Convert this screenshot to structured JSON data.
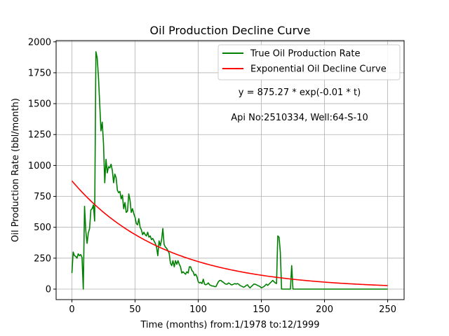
{
  "chart_data": {
    "type": "line",
    "title": "Oil Production Decline Curve",
    "xlabel": "Time (months) from:1/1978 to:12/1999",
    "ylabel": "Oil Production Rate (bbl/month)",
    "xlim": [
      -12.5,
      263
    ],
    "ylim": [
      -85,
      2010
    ],
    "xticks": [
      0,
      50,
      100,
      150,
      200,
      250
    ],
    "yticks": [
      0,
      250,
      500,
      750,
      1000,
      1250,
      1500,
      1750,
      2000
    ],
    "grid": true,
    "legend_position": "top-right",
    "annotations": [
      "y = 875.27 * exp(-0.01 * t)",
      "Api No:2510334, Well:64-S-10"
    ],
    "series": [
      {
        "name": "True Oil Production Rate",
        "color": "#008000",
        "points": [
          [
            0,
            130
          ],
          [
            1,
            300
          ],
          [
            2,
            270
          ],
          [
            3,
            265
          ],
          [
            4,
            250
          ],
          [
            5,
            285
          ],
          [
            6,
            270
          ],
          [
            7,
            280
          ],
          [
            8,
            255
          ],
          [
            9,
            0
          ],
          [
            10,
            670
          ],
          [
            11,
            470
          ],
          [
            12,
            370
          ],
          [
            13,
            455
          ],
          [
            14,
            490
          ],
          [
            15,
            640
          ],
          [
            16,
            650
          ],
          [
            17,
            680
          ],
          [
            18,
            550
          ],
          [
            19,
            1920
          ],
          [
            20,
            1870
          ],
          [
            21,
            1720
          ],
          [
            22,
            1500
          ],
          [
            23,
            1280
          ],
          [
            24,
            1350
          ],
          [
            25,
            1180
          ],
          [
            26,
            860
          ],
          [
            27,
            1050
          ],
          [
            28,
            940
          ],
          [
            29,
            990
          ],
          [
            30,
            980
          ],
          [
            31,
            1010
          ],
          [
            32,
            960
          ],
          [
            33,
            860
          ],
          [
            34,
            930
          ],
          [
            35,
            900
          ],
          [
            36,
            800
          ],
          [
            37,
            780
          ],
          [
            38,
            790
          ],
          [
            39,
            730
          ],
          [
            40,
            760
          ],
          [
            41,
            650
          ],
          [
            42,
            700
          ],
          [
            43,
            620
          ],
          [
            44,
            630
          ],
          [
            45,
            770
          ],
          [
            46,
            720
          ],
          [
            47,
            620
          ],
          [
            48,
            650
          ],
          [
            49,
            610
          ],
          [
            50,
            580
          ],
          [
            51,
            530
          ],
          [
            52,
            520
          ],
          [
            53,
            570
          ],
          [
            54,
            500
          ],
          [
            55,
            480
          ],
          [
            56,
            440
          ],
          [
            57,
            460
          ],
          [
            58,
            440
          ],
          [
            59,
            430
          ],
          [
            60,
            460
          ],
          [
            61,
            420
          ],
          [
            62,
            430
          ],
          [
            63,
            400
          ],
          [
            64,
            410
          ],
          [
            65,
            390
          ],
          [
            66,
            370
          ],
          [
            67,
            340
          ],
          [
            68,
            270
          ],
          [
            69,
            390
          ],
          [
            70,
            350
          ],
          [
            71,
            400
          ],
          [
            72,
            490
          ],
          [
            73,
            360
          ],
          [
            74,
            340
          ],
          [
            75,
            330
          ],
          [
            76,
            310
          ],
          [
            77,
            290
          ],
          [
            78,
            210
          ],
          [
            79,
            190
          ],
          [
            80,
            230
          ],
          [
            81,
            180
          ],
          [
            82,
            230
          ],
          [
            83,
            200
          ],
          [
            84,
            230
          ],
          [
            85,
            200
          ],
          [
            86,
            180
          ],
          [
            87,
            130
          ],
          [
            88,
            140
          ],
          [
            89,
            130
          ],
          [
            90,
            120
          ],
          [
            91,
            140
          ],
          [
            92,
            130
          ],
          [
            93,
            180
          ],
          [
            94,
            180
          ],
          [
            95,
            150
          ],
          [
            96,
            140
          ],
          [
            97,
            110
          ],
          [
            98,
            120
          ],
          [
            99,
            100
          ],
          [
            100,
            60
          ],
          [
            101,
            50
          ],
          [
            102,
            55
          ],
          [
            103,
            45
          ],
          [
            104,
            80
          ],
          [
            105,
            40
          ],
          [
            106,
            35
          ],
          [
            107,
            40
          ],
          [
            108,
            50
          ],
          [
            109,
            35
          ],
          [
            110,
            30
          ],
          [
            111,
            25
          ],
          [
            112,
            25
          ],
          [
            113,
            20
          ],
          [
            114,
            20
          ],
          [
            115,
            40
          ],
          [
            116,
            60
          ],
          [
            117,
            70
          ],
          [
            118,
            70
          ],
          [
            119,
            60
          ],
          [
            120,
            55
          ],
          [
            121,
            45
          ],
          [
            122,
            40
          ],
          [
            123,
            40
          ],
          [
            124,
            50
          ],
          [
            125,
            45
          ],
          [
            126,
            35
          ],
          [
            127,
            35
          ],
          [
            128,
            40
          ],
          [
            129,
            45
          ],
          [
            130,
            40
          ],
          [
            131,
            45
          ],
          [
            132,
            40
          ],
          [
            133,
            30
          ],
          [
            134,
            25
          ],
          [
            135,
            20
          ],
          [
            136,
            15
          ],
          [
            137,
            20
          ],
          [
            138,
            30
          ],
          [
            139,
            35
          ],
          [
            140,
            20
          ],
          [
            141,
            10
          ],
          [
            142,
            20
          ],
          [
            143,
            30
          ],
          [
            144,
            40
          ],
          [
            145,
            40
          ],
          [
            146,
            35
          ],
          [
            147,
            30
          ],
          [
            148,
            25
          ],
          [
            149,
            20
          ],
          [
            150,
            10
          ],
          [
            151,
            15
          ],
          [
            152,
            20
          ],
          [
            153,
            30
          ],
          [
            154,
            40
          ],
          [
            155,
            30
          ],
          [
            156,
            40
          ],
          [
            157,
            50
          ],
          [
            158,
            60
          ],
          [
            159,
            70
          ],
          [
            160,
            60
          ],
          [
            161,
            50
          ],
          [
            162,
            45
          ],
          [
            163,
            430
          ],
          [
            164,
            420
          ],
          [
            165,
            300
          ],
          [
            166,
            0
          ],
          [
            167,
            0
          ],
          [
            168,
            0
          ],
          [
            169,
            0
          ],
          [
            170,
            0
          ],
          [
            171,
            0
          ],
          [
            172,
            0
          ],
          [
            173,
            0
          ],
          [
            174,
            190
          ],
          [
            175,
            0
          ],
          [
            180,
            0
          ],
          [
            190,
            0
          ],
          [
            200,
            0
          ],
          [
            210,
            0
          ],
          [
            220,
            0
          ],
          [
            230,
            0
          ],
          [
            240,
            0
          ],
          [
            250,
            0
          ]
        ]
      },
      {
        "name": "Exponential Oil Decline Curve",
        "color": "#ff0000",
        "equation": {
          "a": 875.27,
          "b": 0.0137
        },
        "x_range": [
          0,
          250
        ]
      }
    ]
  }
}
